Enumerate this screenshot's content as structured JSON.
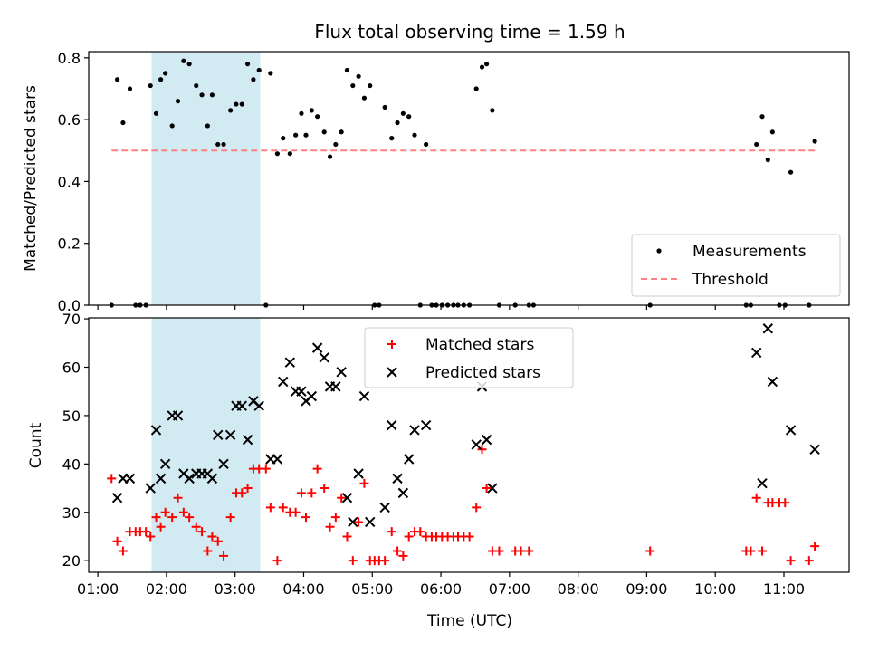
{
  "title": "Flux total observing time = 1.59 h",
  "colors": {
    "measurement": "#000000",
    "threshold": "#ff8080",
    "matched": "#ff0000",
    "predicted": "#000000",
    "highlight": "#add8e6"
  },
  "chart_data": [
    {
      "type": "scatter",
      "title": "Flux total observing time = 1.59 h",
      "ylabel": "Matched/Predicted stars",
      "xlabel": "",
      "xlim": [
        "00:52",
        "11:57"
      ],
      "ylim": [
        0,
        0.82
      ],
      "yticks": [
        0.0,
        0.2,
        0.4,
        0.6,
        0.8
      ],
      "ytick_labels": [
        "0.0",
        "0.2",
        "0.4",
        "0.6",
        "0.8"
      ],
      "grid": false,
      "legend": "bottom-right",
      "highlight_span": [
        "01:47",
        "03:22"
      ],
      "series": [
        {
          "name": "Measurements",
          "marker": "dot",
          "points": [
            [
              "01:12",
              0.0
            ],
            [
              "01:17",
              0.73
            ],
            [
              "01:22",
              0.59
            ],
            [
              "01:28",
              0.7
            ],
            [
              "01:33",
              0.0
            ],
            [
              "01:37",
              0.0
            ],
            [
              "01:42",
              0.0
            ],
            [
              "01:46",
              0.71
            ],
            [
              "01:51",
              0.62
            ],
            [
              "01:55",
              0.73
            ],
            [
              "01:59",
              0.75
            ],
            [
              "02:05",
              0.58
            ],
            [
              "02:10",
              0.66
            ],
            [
              "02:15",
              0.79
            ],
            [
              "02:20",
              0.78
            ],
            [
              "02:26",
              0.71
            ],
            [
              "02:31",
              0.68
            ],
            [
              "02:36",
              0.58
            ],
            [
              "02:40",
              0.68
            ],
            [
              "02:45",
              0.52
            ],
            [
              "02:50",
              0.52
            ],
            [
              "02:56",
              0.63
            ],
            [
              "03:01",
              0.65
            ],
            [
              "03:06",
              0.65
            ],
            [
              "03:11",
              0.78
            ],
            [
              "03:16",
              0.73
            ],
            [
              "03:21",
              0.76
            ],
            [
              "03:27",
              0.0
            ],
            [
              "03:31",
              0.75
            ],
            [
              "03:37",
              0.49
            ],
            [
              "03:42",
              0.54
            ],
            [
              "03:48",
              0.49
            ],
            [
              "03:53",
              0.55
            ],
            [
              "03:58",
              0.62
            ],
            [
              "04:02",
              0.55
            ],
            [
              "04:07",
              0.63
            ],
            [
              "04:12",
              0.61
            ],
            [
              "04:18",
              0.56
            ],
            [
              "04:23",
              0.48
            ],
            [
              "04:28",
              0.52
            ],
            [
              "04:33",
              0.56
            ],
            [
              "04:38",
              0.76
            ],
            [
              "04:43",
              0.71
            ],
            [
              "04:48",
              0.74
            ],
            [
              "04:53",
              0.67
            ],
            [
              "04:58",
              0.71
            ],
            [
              "05:02",
              0.0
            ],
            [
              "05:06",
              0.0
            ],
            [
              "05:11",
              0.64
            ],
            [
              "05:17",
              0.54
            ],
            [
              "05:22",
              0.59
            ],
            [
              "05:27",
              0.62
            ],
            [
              "05:32",
              0.61
            ],
            [
              "05:37",
              0.55
            ],
            [
              "05:42",
              0.0
            ],
            [
              "05:47",
              0.52
            ],
            [
              "05:52",
              0.0
            ],
            [
              "05:56",
              0.0
            ],
            [
              "06:01",
              0.0
            ],
            [
              "06:06",
              0.0
            ],
            [
              "06:11",
              0.0
            ],
            [
              "06:15",
              0.0
            ],
            [
              "06:20",
              0.0
            ],
            [
              "06:25",
              0.0
            ],
            [
              "06:31",
              0.7
            ],
            [
              "06:36",
              0.77
            ],
            [
              "06:40",
              0.78
            ],
            [
              "06:45",
              0.63
            ],
            [
              "06:51",
              0.0
            ],
            [
              "07:05",
              0.0
            ],
            [
              "07:17",
              0.0
            ],
            [
              "07:21",
              0.0
            ],
            [
              "09:03",
              0.0
            ],
            [
              "10:27",
              0.0
            ],
            [
              "10:31",
              0.0
            ],
            [
              "10:36",
              0.52
            ],
            [
              "10:41",
              0.61
            ],
            [
              "10:46",
              0.47
            ],
            [
              "10:50",
              0.56
            ],
            [
              "10:56",
              0.0
            ],
            [
              "11:01",
              0.0
            ],
            [
              "11:06",
              0.43
            ],
            [
              "11:22",
              0.0
            ],
            [
              "11:27",
              0.53
            ]
          ]
        },
        {
          "name": "Threshold",
          "marker": "dashed-line",
          "points": [
            [
              "01:12",
              0.5
            ],
            [
              "11:27",
              0.5
            ]
          ]
        }
      ]
    },
    {
      "type": "scatter",
      "title": "",
      "ylabel": "Count",
      "xlabel": "Time (UTC)",
      "xlim": [
        "00:52",
        "11:57"
      ],
      "ylim": [
        17.6,
        70.2
      ],
      "yticks": [
        20,
        30,
        40,
        50,
        60,
        70
      ],
      "ytick_labels": [
        "20",
        "30",
        "40",
        "50",
        "60",
        "70"
      ],
      "xticks": [
        "01:00",
        "02:00",
        "03:00",
        "04:00",
        "05:00",
        "06:00",
        "07:00",
        "08:00",
        "09:00",
        "10:00",
        "11:00"
      ],
      "grid": false,
      "legend": "top-center",
      "highlight_span": [
        "01:47",
        "03:22"
      ],
      "series": [
        {
          "name": "Matched stars",
          "marker": "plus",
          "points": [
            [
              "01:12",
              37
            ],
            [
              "01:17",
              24
            ],
            [
              "01:22",
              22
            ],
            [
              "01:28",
              26
            ],
            [
              "01:33",
              26
            ],
            [
              "01:37",
              26
            ],
            [
              "01:42",
              26
            ],
            [
              "01:46",
              25
            ],
            [
              "01:51",
              29
            ],
            [
              "01:55",
              27
            ],
            [
              "01:59",
              30
            ],
            [
              "02:05",
              29
            ],
            [
              "02:10",
              33
            ],
            [
              "02:15",
              30
            ],
            [
              "02:20",
              29
            ],
            [
              "02:26",
              27
            ],
            [
              "02:31",
              26
            ],
            [
              "02:36",
              22
            ],
            [
              "02:40",
              25
            ],
            [
              "02:45",
              24
            ],
            [
              "02:50",
              21
            ],
            [
              "02:56",
              29
            ],
            [
              "03:01",
              34
            ],
            [
              "03:06",
              34
            ],
            [
              "03:11",
              35
            ],
            [
              "03:16",
              39
            ],
            [
              "03:21",
              39
            ],
            [
              "03:27",
              39
            ],
            [
              "03:31",
              31
            ],
            [
              "03:37",
              20
            ],
            [
              "03:42",
              31
            ],
            [
              "03:48",
              30
            ],
            [
              "03:53",
              30
            ],
            [
              "03:58",
              34
            ],
            [
              "04:02",
              29
            ],
            [
              "04:07",
              34
            ],
            [
              "04:12",
              39
            ],
            [
              "04:18",
              35
            ],
            [
              "04:23",
              27
            ],
            [
              "04:28",
              29
            ],
            [
              "04:33",
              33
            ],
            [
              "04:38",
              25
            ],
            [
              "04:43",
              20
            ],
            [
              "04:48",
              28
            ],
            [
              "04:53",
              36
            ],
            [
              "04:58",
              20
            ],
            [
              "05:02",
              20
            ],
            [
              "05:06",
              20
            ],
            [
              "05:11",
              20
            ],
            [
              "05:17",
              26
            ],
            [
              "05:22",
              22
            ],
            [
              "05:27",
              21
            ],
            [
              "05:32",
              25
            ],
            [
              "05:37",
              26
            ],
            [
              "05:42",
              26
            ],
            [
              "05:47",
              25
            ],
            [
              "05:52",
              25
            ],
            [
              "05:56",
              25
            ],
            [
              "06:01",
              25
            ],
            [
              "06:06",
              25
            ],
            [
              "06:11",
              25
            ],
            [
              "06:15",
              25
            ],
            [
              "06:20",
              25
            ],
            [
              "06:25",
              25
            ],
            [
              "06:31",
              31
            ],
            [
              "06:36",
              43
            ],
            [
              "06:40",
              35
            ],
            [
              "06:45",
              22
            ],
            [
              "06:51",
              22
            ],
            [
              "07:05",
              22
            ],
            [
              "07:10",
              22
            ],
            [
              "07:17",
              22
            ],
            [
              "09:03",
              22
            ],
            [
              "10:27",
              22
            ],
            [
              "10:31",
              22
            ],
            [
              "10:36",
              33
            ],
            [
              "10:41",
              22
            ],
            [
              "10:46",
              32
            ],
            [
              "10:50",
              32
            ],
            [
              "10:56",
              32
            ],
            [
              "11:01",
              32
            ],
            [
              "11:06",
              20
            ],
            [
              "11:22",
              20
            ],
            [
              "11:27",
              23
            ]
          ]
        },
        {
          "name": "Predicted stars",
          "marker": "x",
          "points": [
            [
              "01:17",
              33
            ],
            [
              "01:22",
              37
            ],
            [
              "01:28",
              37
            ],
            [
              "01:46",
              35
            ],
            [
              "01:51",
              47
            ],
            [
              "01:55",
              37
            ],
            [
              "01:59",
              40
            ],
            [
              "02:05",
              50
            ],
            [
              "02:10",
              50
            ],
            [
              "02:15",
              38
            ],
            [
              "02:20",
              37
            ],
            [
              "02:26",
              38
            ],
            [
              "02:31",
              38
            ],
            [
              "02:36",
              38
            ],
            [
              "02:40",
              37
            ],
            [
              "02:45",
              46
            ],
            [
              "02:50",
              40
            ],
            [
              "02:56",
              46
            ],
            [
              "03:01",
              52
            ],
            [
              "03:06",
              52
            ],
            [
              "03:11",
              45
            ],
            [
              "03:16",
              53
            ],
            [
              "03:21",
              52
            ],
            [
              "03:31",
              41
            ],
            [
              "03:37",
              41
            ],
            [
              "03:42",
              57
            ],
            [
              "03:48",
              61
            ],
            [
              "03:53",
              55
            ],
            [
              "03:58",
              55
            ],
            [
              "04:02",
              53
            ],
            [
              "04:07",
              54
            ],
            [
              "04:12",
              64
            ],
            [
              "04:18",
              62
            ],
            [
              "04:23",
              56
            ],
            [
              "04:28",
              56
            ],
            [
              "04:33",
              59
            ],
            [
              "04:38",
              33
            ],
            [
              "04:43",
              28
            ],
            [
              "04:48",
              38
            ],
            [
              "04:53",
              54
            ],
            [
              "04:58",
              28
            ],
            [
              "05:11",
              31
            ],
            [
              "05:17",
              48
            ],
            [
              "05:22",
              37
            ],
            [
              "05:27",
              34
            ],
            [
              "05:32",
              41
            ],
            [
              "05:37",
              47
            ],
            [
              "05:47",
              48
            ],
            [
              "06:31",
              44
            ],
            [
              "06:36",
              56
            ],
            [
              "06:40",
              45
            ],
            [
              "06:45",
              35
            ],
            [
              "10:36",
              63
            ],
            [
              "10:41",
              36
            ],
            [
              "10:46",
              68
            ],
            [
              "10:50",
              57
            ],
            [
              "11:06",
              47
            ],
            [
              "11:27",
              43
            ]
          ]
        }
      ]
    }
  ]
}
